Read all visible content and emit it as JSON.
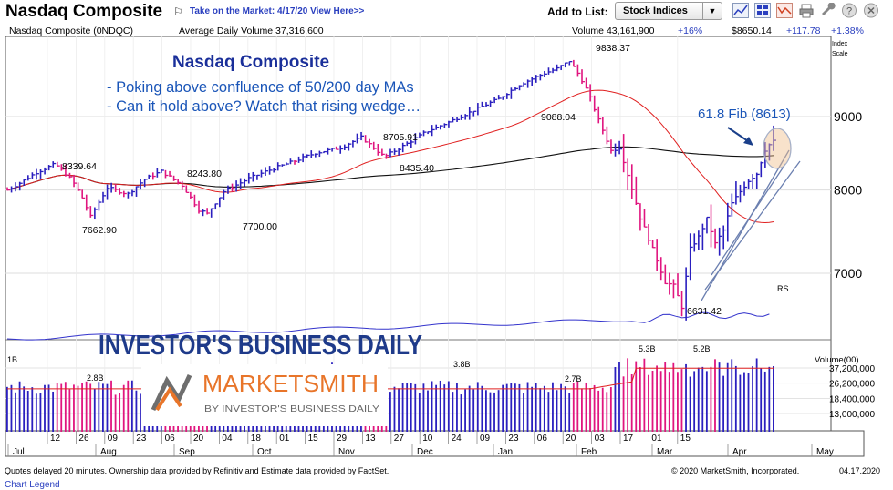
{
  "header": {
    "title": "Nasdaq Composite",
    "take_link": "Take on the Market: 4/17/20 View Here>>",
    "add_to_list": "Add to List:",
    "list_select": "Stock Indices"
  },
  "info": {
    "symbol": "Nasdaq Composite   (0NDQC)",
    "avg_volume": "Average Daily Volume 37,316,600",
    "volume": "Volume 43,161,900",
    "vol_change": "+16%",
    "price": "$8650.14",
    "change": "+117.78",
    "pct": "+1.38%",
    "index_label": "Index",
    "scale_label": "Scale"
  },
  "annotation": {
    "title": "Nasdaq Composite",
    "line1": "- Poking above confluence of 50/200 day MAs",
    "line2": "- Can it hold above? Watch that rising wedge…",
    "fib": "61.8 Fib   (8613)"
  },
  "branding": {
    "ibd": "INVESTOR'S BUSINESS DAILY",
    "ms": "MARKETSMITH",
    "ms_sub": "BY INVESTOR'S BUSINESS DAILY"
  },
  "footer": {
    "delay": "Quotes delayed 20 minutes. Ownership data provided by Refinitiv and Estimate data provided by FactSet.",
    "copyright": "© 2020 MarketSmith, Incorporated.",
    "date": "04.17.2020",
    "legend": "Chart Legend"
  },
  "colors": {
    "up": "#2a1fbf",
    "down": "#e0157f",
    "ma50": "#e02020",
    "ma200": "#111111",
    "rs": "#3333cc",
    "annot": "#1a2f9a",
    "fib": "#1a55b8"
  },
  "chart_data": {
    "type": "line",
    "title": "Nasdaq Composite",
    "price_axis": {
      "ticks": [
        "9000",
        "8000",
        "7000"
      ],
      "values": [
        9000,
        8000,
        7000
      ],
      "range": [
        6300,
        10200
      ]
    },
    "volume_axis": {
      "title": "Volume(00)",
      "ticks": [
        "37,200,000",
        "26,200,000",
        "18,400,000",
        "13,000,000"
      ],
      "values": [
        37200000,
        26200000,
        18400000,
        13000000
      ]
    },
    "x_day_labels": [
      "12",
      "26",
      "09",
      "23",
      "06",
      "20",
      "04",
      "18",
      "01",
      "15",
      "29",
      "13",
      "27",
      "10",
      "24",
      "09",
      "23",
      "06",
      "20",
      "03",
      "17",
      "01",
      "15"
    ],
    "x_month_labels": [
      "Jul",
      "Aug",
      "Sep",
      "Oct",
      "Nov",
      "Dec",
      "Jan",
      "Feb",
      "Mar",
      "Apr",
      "May"
    ],
    "price_annotations": [
      {
        "label": "8339.64",
        "value": 8339.64
      },
      {
        "label": "7662.90",
        "value": 7662.9
      },
      {
        "label": "8243.80",
        "value": 8243.8
      },
      {
        "label": "7700.00",
        "value": 7700.0
      },
      {
        "label": "8705.91",
        "value": 8705.91
      },
      {
        "label": "8435.40",
        "value": 8435.4
      },
      {
        "label": "9838.37",
        "value": 9838.37
      },
      {
        "label": "9088.04",
        "value": 9088.04
      },
      {
        "label": "6631.42",
        "value": 6631.42
      }
    ],
    "volume_annotations": [
      "2.8B",
      "3.8B",
      "2.7B",
      "5.3B",
      "5.2B",
      "1B"
    ],
    "series": [
      {
        "name": "RS",
        "values": []
      }
    ],
    "fib_level": {
      "label": "61.8 Fib",
      "value": 8613
    }
  }
}
